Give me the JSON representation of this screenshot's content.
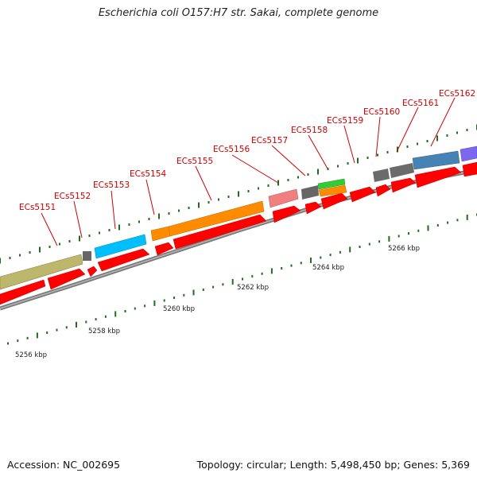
{
  "title": "Escherichia coli O157:H7 str. Sakai, complete genome",
  "footer": {
    "accession": "Accession: NC_002695",
    "stats": "Topology: circular; Length: 5,498,450 bp; Genes: 5,369"
  },
  "scale_labels": [
    "5256 kbp",
    "5258 kbp",
    "5260 kbp",
    "5262 kbp",
    "5264 kbp",
    "5266 kbp"
  ],
  "gene_labels": [
    "ECs5151",
    "ECs5152",
    "ECs5153",
    "ECs5154",
    "ECs5155",
    "ECs5156",
    "ECs5157",
    "ECs5158",
    "ECs5159",
    "ECs5160",
    "ECs5161",
    "ECs5162"
  ],
  "colors": {
    "cds_forward": "#ff0000",
    "backbone": "#808080",
    "tick": "#1e6e1e",
    "label_text": "#cc0000",
    "khaki": "#bdb76b",
    "cyan": "#00bfff",
    "orange": "#ff8c00",
    "salmon": "#f08080",
    "gray": "#6b6b6b",
    "green": "#32cd32",
    "steelblue": "#4682b4",
    "purple": "#7b68ee"
  }
}
